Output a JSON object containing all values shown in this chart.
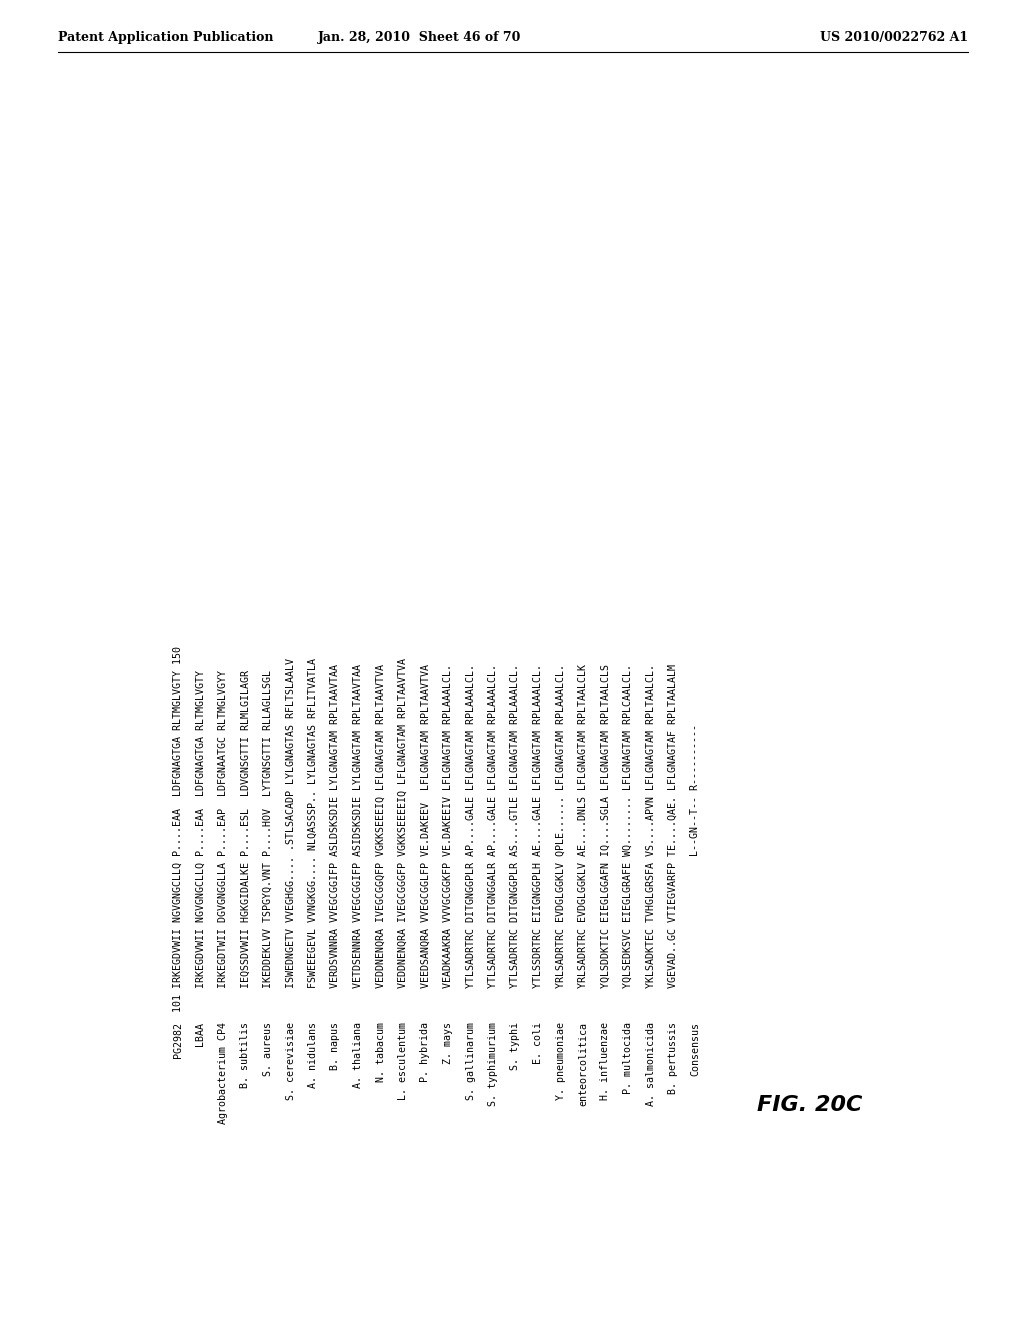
{
  "header_left": "Patent Application Publication",
  "header_center": "Jan. 28, 2010  Sheet 46 of 70",
  "header_right": "US 2010/0022762 A1",
  "figure_label": "FIG. 20C",
  "rows": [
    [
      "PG2982",
      "101 IRKEGDVWII NGVGNGCLLQ P....EAA  LDFGNAGTGA RLTMGLVGTY 150"
    ],
    [
      "LBAA",
      "    IRKEGDVWII NGVGNGCLLQ P....EAA  LDFGNAGTGA RLTMGLVGTY"
    ],
    [
      "Agrobacterium CP4",
      "    IRKEGDTWII DGVGNGGLLA P....EAP  LDFGNAATGC RLTMGLVGYY"
    ],
    [
      "B. subtilis",
      "    IEQSSDVWII HGKGIDALKE P....ESL  LDVGNSGTTI RLMLGILAGR"
    ],
    [
      "S. aureus",
      "    IKEDDEKLVV TSPGYQ.VNT P....HOV  LYTGNSGTTI RLLAGLLSGL"
    ],
    [
      "S. cerevisiae",
      "    ISWEDNGETV VVEGHGG.... .STLSACADP LYLGNAGTAS RFLTSLAALV"
    ],
    [
      "A. nidulans",
      "    FSWEEEGEVL VVNGKGG.... NLQASSSP.. LYLGNAGTAS RFLITVATLA"
    ],
    [
      "B. napus",
      "    VERDSVNNRA VVEGCGGIFP ASLDSKSDIE LYLGNAGTAM RPLTAAVTAA"
    ],
    [
      "A. thaliana",
      "    VETDSENNRA VVEGCGGIFP ASIDSKSDIE LYLGNAGTAM RPLTAAVTAA"
    ],
    [
      "N. tabacum",
      "    VEDDNENQRA IVEGCGGQFP VGKKSEEEIQ LFLGNAGTAM RPLTAAVTVA"
    ],
    [
      "L. esculentum",
      "    VEDDNENQRA IVEGCGGGFP VGKKSEEEEIQ LFLGNAGTAM RPLTAAVTVA"
    ],
    [
      "P. hybrida",
      "    VEEDSANQRA VVEGCGGLFP VE.DAKEEV  LFLGNAGTAM RPLTAAVTVA"
    ],
    [
      "Z. mays",
      "    VEADKAAKRA VVVGCGGKFP VE.DAKEEIV LFLGNAGTAM RPLAAALCL."
    ],
    [
      "S. gallinarum",
      "    YTLSADRTRC DITGNGGPLR AP....GALE LFLGNAGTAM RPLAAALCL."
    ],
    [
      "S. typhimurium",
      "    YTLSADRTRC DITGNGGALR AP....GALE LFLGNAGTAM RPLAAALCL."
    ],
    [
      "S. typhi",
      "    YTLSADRTRC DITGNGGPLR AS....GTLE LFLGNAGTAM RPLAAALCL."
    ],
    [
      "E. coli",
      "    YTLSSDRTRC EIIGNGGPLH AE....GALE LFLGNAGTAM RPLAAALCL."
    ],
    [
      "Y. pneumoniae",
      "    YRLSADRTRC EVDGLGGKLV QPLE...... LFLGNAGTAM RPLAAALCL."
    ],
    [
      "enteorcolitica",
      "    YRLSADRTRC EVDGLGGKLV AE....DNLS LFLGNAGTAM RPLTAALCLK"
    ],
    [
      "H. influenzae",
      "    YQLSDDKTIC EIEGLGGAFN IQ....SGLA LFLGNAGTAM RPLTAALCLS"
    ],
    [
      "P. multocida",
      "    YQLSEDKSVC EIEGLGRAFE WQ........ LFLGNAGTAM RPLCAALCL."
    ],
    [
      "A. salmonicida",
      "    YKLSADKTEC TVHGLGRSFA VS....APVN LFLGNAGTAM RPLTAALCL."
    ],
    [
      "B. pertussis",
      "    VGEVAD..GC VTIEGVARFP TE....QAE. LFLGNAGTAF RPLTAALALM"
    ],
    [
      "Consensus",
      "                          L--GN--T-- R----------          "
    ]
  ]
}
